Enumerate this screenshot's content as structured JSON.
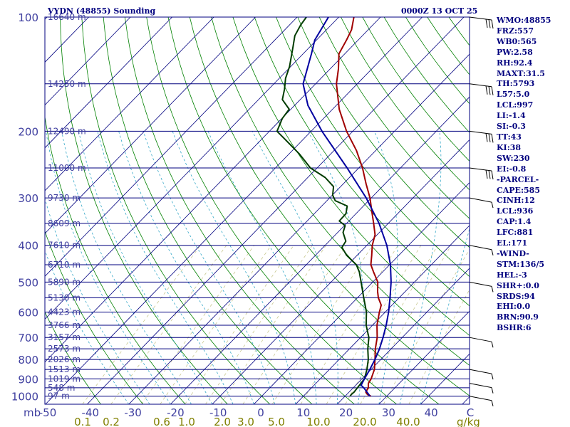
{
  "header": {
    "station": "VYDN (48855) Sounding",
    "time": "0000Z 13 OCT 25"
  },
  "chart_data": {
    "type": "line",
    "chart_kind": "Skew-T log-P sounding",
    "pressure_ticks": [
      100,
      200,
      300,
      400,
      500,
      600,
      700,
      800,
      900,
      1000
    ],
    "pressure_tick_labels": [
      "100",
      "200",
      "300",
      "400",
      "500",
      "600",
      "700",
      "800",
      "900",
      "1000"
    ],
    "height_levels": [
      {
        "p": 100,
        "label": "16640 m"
      },
      {
        "p": 150,
        "label": "14250 m"
      },
      {
        "p": 200,
        "label": "12490 m"
      },
      {
        "p": 250,
        "label": "11000 m"
      },
      {
        "p": 300,
        "label": "9730 m"
      },
      {
        "p": 350,
        "label": "8609 m"
      },
      {
        "p": 400,
        "label": "7610 m"
      },
      {
        "p": 450,
        "label": "6710 m"
      },
      {
        "p": 500,
        "label": "5890 m"
      },
      {
        "p": 550,
        "label": "5130 m"
      },
      {
        "p": 600,
        "label": "4423 m"
      },
      {
        "p": 650,
        "label": "3766 m"
      },
      {
        "p": 700,
        "label": "3157 m"
      },
      {
        "p": 750,
        "label": "2573 m"
      },
      {
        "p": 800,
        "label": "2026 m"
      },
      {
        "p": 850,
        "label": "1513 m"
      },
      {
        "p": 900,
        "label": "1019 m"
      },
      {
        "p": 950,
        "label": "548 m"
      },
      {
        "p": 1000,
        "label": "97 m"
      }
    ],
    "temp_axis_labels": [
      "-50",
      "-40",
      "-30",
      "-20",
      "-10",
      "0",
      "10",
      "20",
      "30",
      "40",
      "C"
    ],
    "temp_axis_values": [
      -50,
      -40,
      -30,
      -20,
      -10,
      0,
      10,
      20,
      30,
      40
    ],
    "mixing_ratio_labels": [
      "0.1",
      "0.2",
      "0.6",
      "1.0",
      "2.0",
      "3.0",
      "5.0",
      "10.0",
      "20.0",
      "40.0",
      "g/kg"
    ],
    "mixing_ratio_values": [
      0.1,
      0.2,
      0.6,
      1.0,
      2.0,
      3.0,
      5.0,
      10.0,
      20.0,
      40.0
    ],
    "pressure_unit": "mb",
    "series": [
      {
        "name": "Temperature",
        "color": "#a00000",
        "points": [
          [
            1000,
            26.2
          ],
          [
            990,
            25.0
          ],
          [
            975,
            24.0
          ],
          [
            950,
            23.6
          ],
          [
            925,
            22.6
          ],
          [
            900,
            22.2
          ],
          [
            850,
            20.8
          ],
          [
            800,
            18.6
          ],
          [
            750,
            16.2
          ],
          [
            700,
            14.0
          ],
          [
            650,
            11.1
          ],
          [
            600,
            8.6
          ],
          [
            575,
            7.4
          ],
          [
            550,
            5.0
          ],
          [
            530,
            3.4
          ],
          [
            500,
            1.2
          ],
          [
            470,
            -2.2
          ],
          [
            450,
            -4.5
          ],
          [
            425,
            -6.5
          ],
          [
            400,
            -8.7
          ],
          [
            375,
            -10.5
          ],
          [
            350,
            -13.5
          ],
          [
            325,
            -16.8
          ],
          [
            300,
            -20.3
          ],
          [
            275,
            -24.6
          ],
          [
            250,
            -29.1
          ],
          [
            225,
            -34.6
          ],
          [
            200,
            -41.5
          ],
          [
            175,
            -48.4
          ],
          [
            150,
            -55.0
          ],
          [
            137,
            -58.0
          ],
          [
            125,
            -61.4
          ],
          [
            115,
            -62.8
          ],
          [
            108,
            -64.0
          ],
          [
            100,
            -66.4
          ]
        ]
      },
      {
        "name": "Dewpoint",
        "color": "#003c00",
        "points": [
          [
            1000,
            21.2
          ],
          [
            990,
            21.1
          ],
          [
            975,
            21.2
          ],
          [
            950,
            21.0
          ],
          [
            925,
            20.8
          ],
          [
            900,
            20.6
          ],
          [
            850,
            19.0
          ],
          [
            800,
            17.0
          ],
          [
            750,
            14.4
          ],
          [
            700,
            12.0
          ],
          [
            650,
            8.5
          ],
          [
            600,
            5.5
          ],
          [
            550,
            1.5
          ],
          [
            500,
            -2.8
          ],
          [
            470,
            -5.6
          ],
          [
            450,
            -8.0
          ],
          [
            425,
            -12.5
          ],
          [
            405,
            -15.5
          ],
          [
            390,
            -16.0
          ],
          [
            370,
            -18.7
          ],
          [
            355,
            -19.8
          ],
          [
            345,
            -22.3
          ],
          [
            330,
            -22.4
          ],
          [
            315,
            -23.9
          ],
          [
            305,
            -28.0
          ],
          [
            295,
            -29.9
          ],
          [
            280,
            -31.7
          ],
          [
            265,
            -35.8
          ],
          [
            250,
            -41.6
          ],
          [
            230,
            -47.4
          ],
          [
            210,
            -54.4
          ],
          [
            200,
            -58.2
          ],
          [
            185,
            -59.9
          ],
          [
            175,
            -60.4
          ],
          [
            165,
            -64.3
          ],
          [
            155,
            -66.2
          ],
          [
            145,
            -68.5
          ],
          [
            135,
            -70.3
          ],
          [
            120,
            -74.0
          ],
          [
            112,
            -76.2
          ],
          [
            105,
            -77.3
          ],
          [
            100,
            -77.8
          ]
        ]
      },
      {
        "name": "Parcel",
        "color": "#0000a0",
        "points": [
          [
            1000,
            26.0
          ],
          [
            950,
            22.5
          ],
          [
            936,
            21.3
          ],
          [
            900,
            20.6
          ],
          [
            850,
            19.7
          ],
          [
            800,
            18.6
          ],
          [
            750,
            17.2
          ],
          [
            700,
            15.4
          ],
          [
            650,
            13.3
          ],
          [
            600,
            10.8
          ],
          [
            550,
            7.8
          ],
          [
            500,
            4.4
          ],
          [
            450,
            0.2
          ],
          [
            400,
            -5.2
          ],
          [
            350,
            -12.2
          ],
          [
            300,
            -21.2
          ],
          [
            250,
            -32.8
          ],
          [
            200,
            -47.4
          ],
          [
            171,
            -56.8
          ],
          [
            150,
            -63.0
          ],
          [
            125,
            -68.0
          ],
          [
            115,
            -70.4
          ],
          [
            100,
            -72.5
          ]
        ]
      }
    ],
    "wind_barbs": [
      {
        "p": 100,
        "barb": "flagged"
      },
      {
        "p": 150,
        "barb": "flagged"
      },
      {
        "p": 200,
        "barb": "flagged"
      },
      {
        "p": 250,
        "barb": "flagged"
      },
      {
        "p": 300,
        "barb": "light"
      },
      {
        "p": 400,
        "barb": "light"
      },
      {
        "p": 500,
        "barb": "light"
      },
      {
        "p": 700,
        "barb": "light"
      },
      {
        "p": 850,
        "barb": "light"
      },
      {
        "p": 925,
        "barb": "light"
      },
      {
        "p": 1000,
        "barb": "light"
      }
    ]
  },
  "indices": [
    "WMO:48855",
    "FRZ:557",
    "WB0:565",
    "PW:2.58",
    "RH:92.4",
    "MAXT:31.5",
    "TH:5793",
    "L57:5.0",
    "LCL:997",
    "LI:-1.4",
    "SI:-0.3",
    "TT:43",
    "KI:38",
    "SW:230",
    "EI:-0.8",
    "-PARCEL-",
    "CAPE:585",
    "CINH:12",
    "LCL:936",
    "CAP:1.4",
    "LFC:881",
    "EL:171",
    "-WIND-",
    "STM:136/5",
    "HEL:-3",
    "SHR+:0.0",
    "SRDS:94",
    "EHI:0.0",
    "BRN:90.9",
    "BSHR:6"
  ],
  "colors": {
    "frame": "#00007f",
    "isotherm": "#00007f",
    "dry_adiabat": "#008000",
    "moist_adiabat": "#35a8c8",
    "mixing_ratio": "#c8c890",
    "mixing_label": "#808000",
    "axis_text": "#4040a0"
  }
}
